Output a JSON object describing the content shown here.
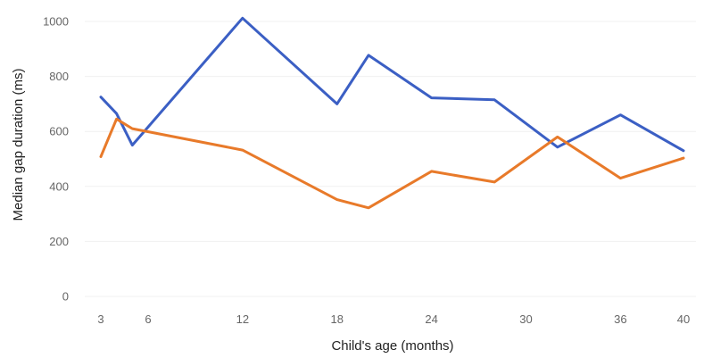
{
  "chart_data": {
    "type": "line",
    "title": "",
    "xlabel": "Child's age (months)",
    "ylabel": "Median gap duration (ms)",
    "xlim": [
      3,
      40
    ],
    "ylim": [
      0,
      1000
    ],
    "x_ticks": [
      3,
      6,
      12,
      18,
      24,
      30,
      36,
      40
    ],
    "y_ticks": [
      0,
      200,
      400,
      600,
      800,
      1000
    ],
    "grid": true,
    "legend": "none",
    "series": [
      {
        "color": "#3b5fc4",
        "points": [
          [
            3,
            725
          ],
          [
            4,
            665
          ],
          [
            5,
            550
          ],
          [
            12,
            1012
          ],
          [
            18,
            700
          ],
          [
            20,
            877
          ],
          [
            24,
            722
          ],
          [
            28,
            715
          ],
          [
            32,
            543
          ],
          [
            36,
            660
          ],
          [
            40,
            530
          ]
        ]
      },
      {
        "color": "#e87a2a",
        "points": [
          [
            3,
            508
          ],
          [
            4,
            645
          ],
          [
            5,
            610
          ],
          [
            12,
            532
          ],
          [
            18,
            352
          ],
          [
            20,
            322
          ],
          [
            24,
            455
          ],
          [
            28,
            416
          ],
          [
            32,
            580
          ],
          [
            36,
            430
          ],
          [
            40,
            503
          ]
        ]
      }
    ]
  }
}
